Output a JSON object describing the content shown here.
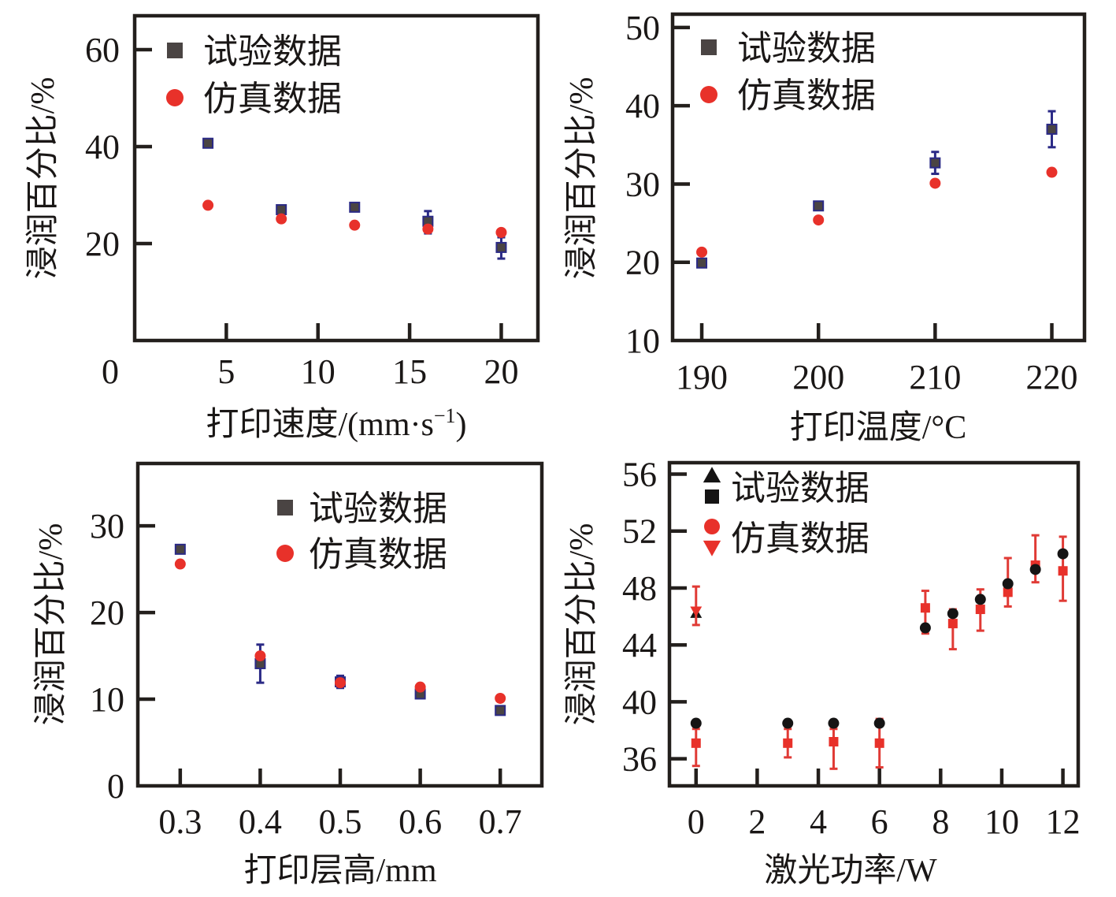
{
  "chart_data": [
    {
      "type": "scatter",
      "id": "speed",
      "title": "",
      "xlabel": "打印速度/(mm·s⁻¹)",
      "xlabel_main": "打印速度/(mm·s",
      "xlabel_sup": "−1",
      "xlabel_tail": ")",
      "ylabel": "浸润百分比/%",
      "xlim": [
        0,
        22
      ],
      "ylim": [
        0,
        67
      ],
      "xticks": [
        5,
        10,
        15,
        20
      ],
      "xtick_labels": [
        "5",
        "10",
        "15",
        "20"
      ],
      "origin_label": "0",
      "yticks": [
        20,
        40,
        60
      ],
      "ytick_labels": [
        "20",
        "40",
        "60"
      ],
      "grid": false,
      "legend_position": "top-left",
      "legend": [
        {
          "label": "试验数据",
          "markers": [
            "square"
          ],
          "color": "#4a4443"
        },
        {
          "label": "仿真数据",
          "markers": [
            "circle"
          ],
          "color": "#e8312a"
        }
      ],
      "series": [
        {
          "name": "试验数据",
          "marker": "square",
          "color": "#4a4443",
          "edge_color": "#2b2a86",
          "error_color": "#2b2a86",
          "x": [
            4,
            8,
            12,
            16,
            20
          ],
          "y": [
            40.7,
            27.0,
            27.5,
            24.6,
            19.2
          ],
          "yerr_low": [
            40.3,
            26.6,
            26.8,
            22.1,
            16.9
          ],
          "yerr_high": [
            41.1,
            27.4,
            28.2,
            26.7,
            21.3
          ]
        },
        {
          "name": "仿真数据",
          "marker": "circle",
          "color": "#e8312a",
          "x": [
            4,
            8,
            12,
            16,
            20
          ],
          "y": [
            27.9,
            25.1,
            23.8,
            23.0,
            22.3
          ]
        }
      ]
    },
    {
      "type": "scatter",
      "id": "temperature",
      "title": "",
      "xlabel": "打印温度/°C",
      "xlabel_main": "打印温度/°C",
      "ylabel": "浸润百分比/%",
      "xlim": [
        187.5,
        222.8
      ],
      "ylim": [
        10,
        51.7
      ],
      "xticks": [
        190,
        200,
        210,
        220
      ],
      "xtick_labels": [
        "190",
        "200",
        "210",
        "220"
      ],
      "yticks": [
        10,
        20,
        30,
        40,
        50
      ],
      "ytick_labels": [
        "10",
        "20",
        "30",
        "40",
        "50"
      ],
      "grid": false,
      "legend_position": "top-left",
      "legend": [
        {
          "label": "试验数据",
          "markers": [
            "square"
          ],
          "color": "#4a4443"
        },
        {
          "label": "仿真数据",
          "markers": [
            "circle"
          ],
          "color": "#e8312a"
        }
      ],
      "series": [
        {
          "name": "试验数据",
          "marker": "square",
          "color": "#4a4443",
          "edge_color": "#2b2a86",
          "error_color": "#2b2a86",
          "x": [
            190,
            200,
            210,
            220
          ],
          "y": [
            19.9,
            27.2,
            32.7,
            37.0
          ],
          "yerr_low": [
            19.5,
            26.9,
            31.3,
            34.7
          ],
          "yerr_high": [
            20.3,
            27.5,
            34.1,
            39.3
          ]
        },
        {
          "name": "仿真数据",
          "marker": "circle",
          "color": "#e8312a",
          "x": [
            190,
            200,
            210,
            220
          ],
          "y": [
            21.3,
            25.4,
            30.1,
            31.5
          ]
        }
      ]
    },
    {
      "type": "scatter",
      "id": "layer-height",
      "title": "",
      "xlabel": "打印层高/mm",
      "xlabel_main": "打印层高/mm",
      "ylabel": "浸润百分比/%",
      "xlim": [
        0.247,
        0.752
      ],
      "ylim": [
        0,
        37.2
      ],
      "xticks": [
        0.3,
        0.4,
        0.5,
        0.6,
        0.7
      ],
      "xtick_labels": [
        "0.3",
        "0.4",
        "0.5",
        "0.6",
        "0.7"
      ],
      "yticks": [
        0,
        10,
        20,
        30
      ],
      "ytick_labels": [
        "0",
        "10",
        "20",
        "30"
      ],
      "grid": false,
      "legend_position": "top-right",
      "legend": [
        {
          "label": "试验数据",
          "markers": [
            "square"
          ],
          "color": "#4a4443"
        },
        {
          "label": "仿真数据",
          "markers": [
            "circle"
          ],
          "color": "#e8312a"
        }
      ],
      "series": [
        {
          "name": "试验数据",
          "marker": "square",
          "color": "#4a4443",
          "edge_color": "#2b2a86",
          "error_color": "#2b2a86",
          "x": [
            0.3,
            0.4,
            0.5,
            0.6,
            0.7
          ],
          "y": [
            27.3,
            14.1,
            12.0,
            10.6,
            8.7
          ],
          "yerr_low": [
            26.9,
            11.9,
            11.3,
            10.3,
            8.3
          ],
          "yerr_high": [
            27.7,
            16.3,
            12.7,
            10.9,
            9.1
          ]
        },
        {
          "name": "仿真数据",
          "marker": "circle",
          "color": "#e8312a",
          "x": [
            0.3,
            0.4,
            0.5,
            0.6,
            0.7
          ],
          "y": [
            25.6,
            15.0,
            11.9,
            11.4,
            10.1
          ]
        }
      ]
    },
    {
      "type": "scatter",
      "id": "laser-power",
      "title": "",
      "xlabel": "激光功率/W",
      "xlabel_main": "激光功率/W",
      "ylabel": "浸润百分比/%",
      "xlim": [
        -0.87,
        12.5
      ],
      "ylim": [
        34.1,
        56.8
      ],
      "xticks": [
        0,
        2,
        4,
        6,
        8,
        10,
        12
      ],
      "xtick_labels": [
        "0",
        "2",
        "4",
        "6",
        "8",
        "10",
        "12"
      ],
      "yticks": [
        36,
        40,
        44,
        48,
        52,
        56
      ],
      "ytick_labels": [
        "36",
        "40",
        "44",
        "48",
        "52",
        "56"
      ],
      "grid": false,
      "legend_position": "top-left",
      "legend": [
        {
          "label": "试验数据",
          "markers": [
            "triangle-up",
            "square"
          ],
          "color": "#151414"
        },
        {
          "label": "仿真数据",
          "markers": [
            "circle",
            "triangle-down"
          ],
          "color": "#e8312a"
        }
      ],
      "series": [
        {
          "name": "试验数据 (triangle)",
          "marker": "triangle-up",
          "color": "#151414",
          "x": [
            0
          ],
          "y": [
            46.2
          ]
        },
        {
          "name": "仿真数据 (triangle)",
          "marker": "triangle-down",
          "color": "#e8312a",
          "error_color": "#e03a35",
          "x": [
            0
          ],
          "y": [
            46.4
          ],
          "yerr_low": [
            45.4
          ],
          "yerr_high": [
            48.1
          ]
        },
        {
          "name": "仿真数据 (square)",
          "marker": "square",
          "color": "#e8312a",
          "error_color": "#e03a35",
          "x": [
            0,
            3,
            4.5,
            6,
            7.5,
            8.4,
            9.3,
            10.2,
            11.1,
            12
          ],
          "y": [
            37.1,
            37.1,
            37.2,
            37.1,
            46.6,
            45.5,
            46.5,
            47.7,
            49.6,
            49.2
          ],
          "yerr_low": [
            35.5,
            36.1,
            35.3,
            35.4,
            44.8,
            43.7,
            45.0,
            46.7,
            48.4,
            47.1
          ],
          "yerr_high": [
            38.1,
            38.1,
            38.1,
            38.8,
            47.8,
            46.5,
            47.9,
            50.1,
            51.7,
            51.6
          ]
        },
        {
          "name": "试验数据 (circle)",
          "marker": "circle",
          "color": "#151414",
          "x": [
            0,
            3,
            4.5,
            6,
            7.5,
            8.4,
            9.3,
            10.2,
            11.1,
            12
          ],
          "y": [
            38.5,
            38.5,
            38.5,
            38.5,
            45.2,
            46.2,
            47.2,
            48.3,
            49.3,
            50.4
          ]
        }
      ]
    }
  ]
}
